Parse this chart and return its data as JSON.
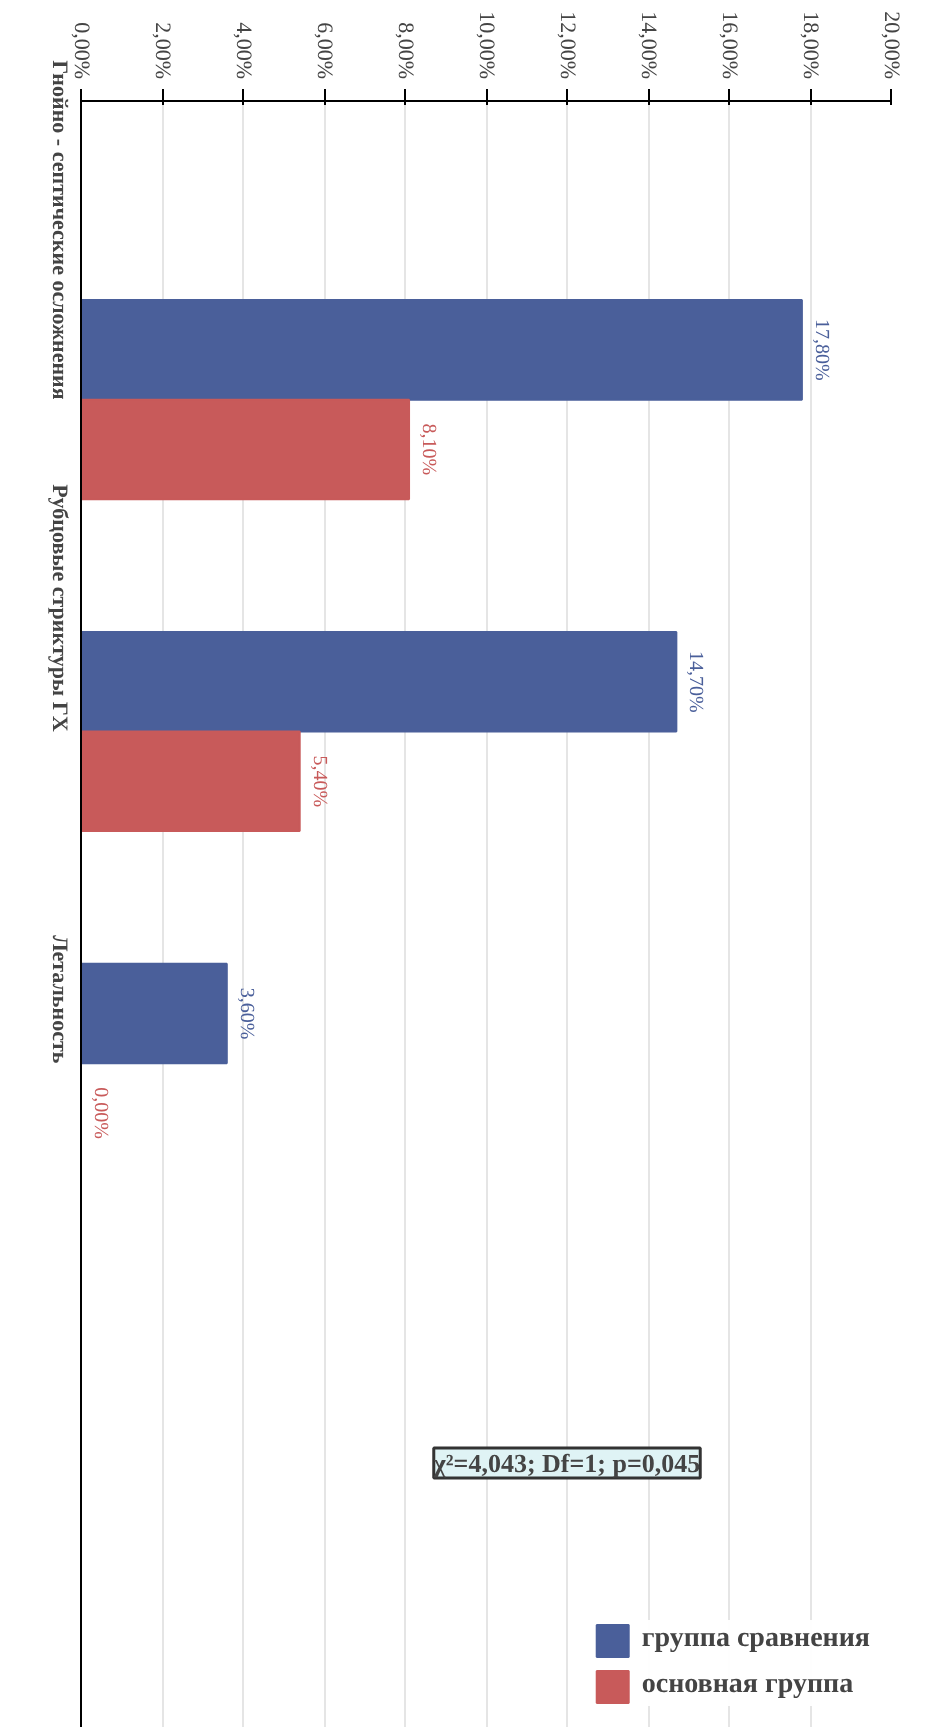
{
  "chart_data": {
    "type": "bar",
    "orientation": "horizontal",
    "categories": [
      "Гнойно - септические осложнения",
      "Рубцовые стриктуры ГХ",
      "Летальность"
    ],
    "series": [
      {
        "name": "группа сравнения",
        "color": "#4a5f9a",
        "values": [
          17.8,
          14.7,
          3.6
        ],
        "value_labels": [
          "17,80%",
          "14,70%",
          "3,60%"
        ]
      },
      {
        "name": "основная группа",
        "color": "#c85a5a",
        "values": [
          8.1,
          5.4,
          0.0
        ],
        "value_labels": [
          "8,10%",
          "5,40%",
          "0,00%"
        ]
      }
    ],
    "xlim": [
      0,
      20
    ],
    "xticks": [
      {
        "value": 0,
        "label": "0,00%"
      },
      {
        "value": 2,
        "label": "2,00%"
      },
      {
        "value": 4,
        "label": "4,00%"
      },
      {
        "value": 6,
        "label": "6,00%"
      },
      {
        "value": 8,
        "label": "8,00%"
      },
      {
        "value": 10,
        "label": "10,00%"
      },
      {
        "value": 12,
        "label": "12,00%"
      },
      {
        "value": 14,
        "label": "14,00%"
      },
      {
        "value": 16,
        "label": "16,00%"
      },
      {
        "value": 18,
        "label": "18,00%"
      },
      {
        "value": 20,
        "label": "20,00%"
      }
    ],
    "grid": "x",
    "legend": "bottom right",
    "annotations": [
      "χ²=4,043; Df=1; p=0,045"
    ]
  }
}
